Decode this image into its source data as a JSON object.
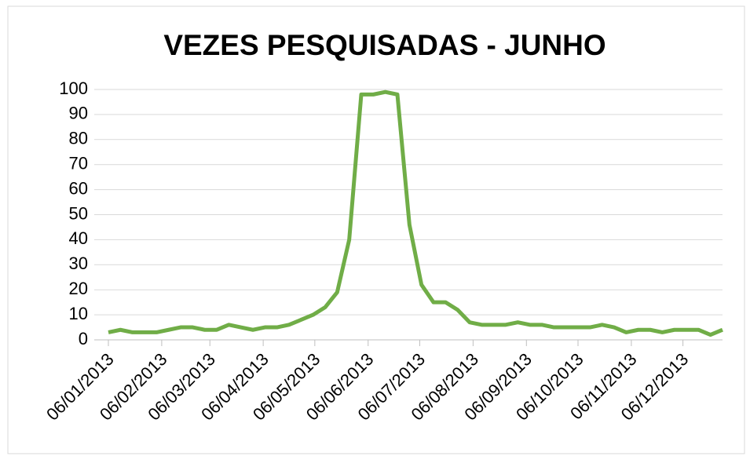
{
  "chart_data": {
    "type": "line",
    "title": "VEZES PESQUISADAS  - JUNHO",
    "x": [
      "2013-01-06",
      "2013-01-13",
      "2013-01-20",
      "2013-01-27",
      "2013-02-03",
      "2013-02-10",
      "2013-02-17",
      "2013-02-24",
      "2013-03-03",
      "2013-03-10",
      "2013-03-17",
      "2013-03-24",
      "2013-03-31",
      "2013-04-07",
      "2013-04-14",
      "2013-04-21",
      "2013-04-28",
      "2013-05-05",
      "2013-05-12",
      "2013-05-19",
      "2013-05-26",
      "2013-06-02",
      "2013-06-09",
      "2013-06-16",
      "2013-06-23",
      "2013-06-30",
      "2013-07-07",
      "2013-07-14",
      "2013-07-21",
      "2013-07-28",
      "2013-08-04",
      "2013-08-11",
      "2013-08-18",
      "2013-08-25",
      "2013-09-01",
      "2013-09-08",
      "2013-09-15",
      "2013-09-22",
      "2013-09-29",
      "2013-10-06",
      "2013-10-13",
      "2013-10-20",
      "2013-10-27",
      "2013-11-03",
      "2013-11-10",
      "2013-11-17",
      "2013-11-24",
      "2013-12-01",
      "2013-12-08",
      "2013-12-15",
      "2013-12-22",
      "2013-12-29"
    ],
    "series": [
      {
        "name": "Junho",
        "color": "#70ad47",
        "values": [
          3,
          4,
          3,
          3,
          3,
          4,
          5,
          5,
          4,
          4,
          6,
          5,
          4,
          5,
          5,
          6,
          8,
          10,
          13,
          19,
          40,
          98,
          98,
          99,
          98,
          46,
          22,
          15,
          15,
          12,
          7,
          6,
          6,
          6,
          7,
          6,
          6,
          5,
          5,
          5,
          5,
          6,
          5,
          3,
          4,
          4,
          3,
          4,
          4,
          4,
          2,
          4
        ]
      }
    ],
    "xlim": [
      "2013-01-06",
      "2013-12-29"
    ],
    "xticks": [
      {
        "value": "2013-01-06",
        "label": "06/01/2013"
      },
      {
        "value": "2013-02-06",
        "label": "06/02/2013"
      },
      {
        "value": "2013-03-06",
        "label": "06/03/2013"
      },
      {
        "value": "2013-04-06",
        "label": "06/04/2013"
      },
      {
        "value": "2013-05-06",
        "label": "06/05/2013"
      },
      {
        "value": "2013-06-06",
        "label": "06/06/2013"
      },
      {
        "value": "2013-07-06",
        "label": "06/07/2013"
      },
      {
        "value": "2013-08-06",
        "label": "06/08/2013"
      },
      {
        "value": "2013-09-06",
        "label": "06/09/2013"
      },
      {
        "value": "2013-10-06",
        "label": "06/10/2013"
      },
      {
        "value": "2013-11-06",
        "label": "06/11/2013"
      },
      {
        "value": "2013-12-06",
        "label": "06/12/2013"
      }
    ],
    "ylim": [
      0,
      100
    ],
    "yticks": [
      0,
      10,
      20,
      30,
      40,
      50,
      60,
      70,
      80,
      90,
      100
    ],
    "grid": true
  }
}
